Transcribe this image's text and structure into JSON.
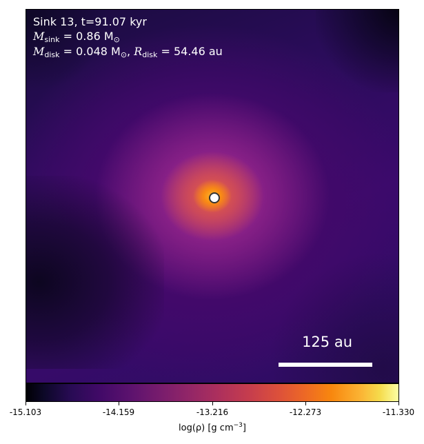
{
  "annotation": {
    "title": "Sink 13, t=91.07 kyr",
    "sink_mass_label": "M",
    "sink_mass_sub": "sink",
    "sink_mass_value": "= 0.86 M",
    "sink_mass_unit_sub": "⊙",
    "disk_mass_label": "M",
    "disk_mass_sub": "disk",
    "disk_mass_value": "= 0.048 M",
    "disk_mass_unit_sub": "⊙",
    "disk_sep": ", ",
    "disk_radius_label": "R",
    "disk_radius_sub": "disk",
    "disk_radius_value": "= 54.46 au"
  },
  "scale_bar": {
    "label": "125 au"
  },
  "colorbar": {
    "colormap": "inferno",
    "label": "log(ρ) [g cm",
    "label_exp": "−3",
    "label_end": "]",
    "ticks": [
      "-15.103",
      "-14.159",
      "-13.216",
      "-12.273",
      "-11.330"
    ],
    "range": [
      -15.103,
      -11.33
    ]
  },
  "colors": {
    "sink_marker_fill": "#ffffff",
    "sink_marker_edge": "#333333",
    "text": "#ffffff"
  }
}
